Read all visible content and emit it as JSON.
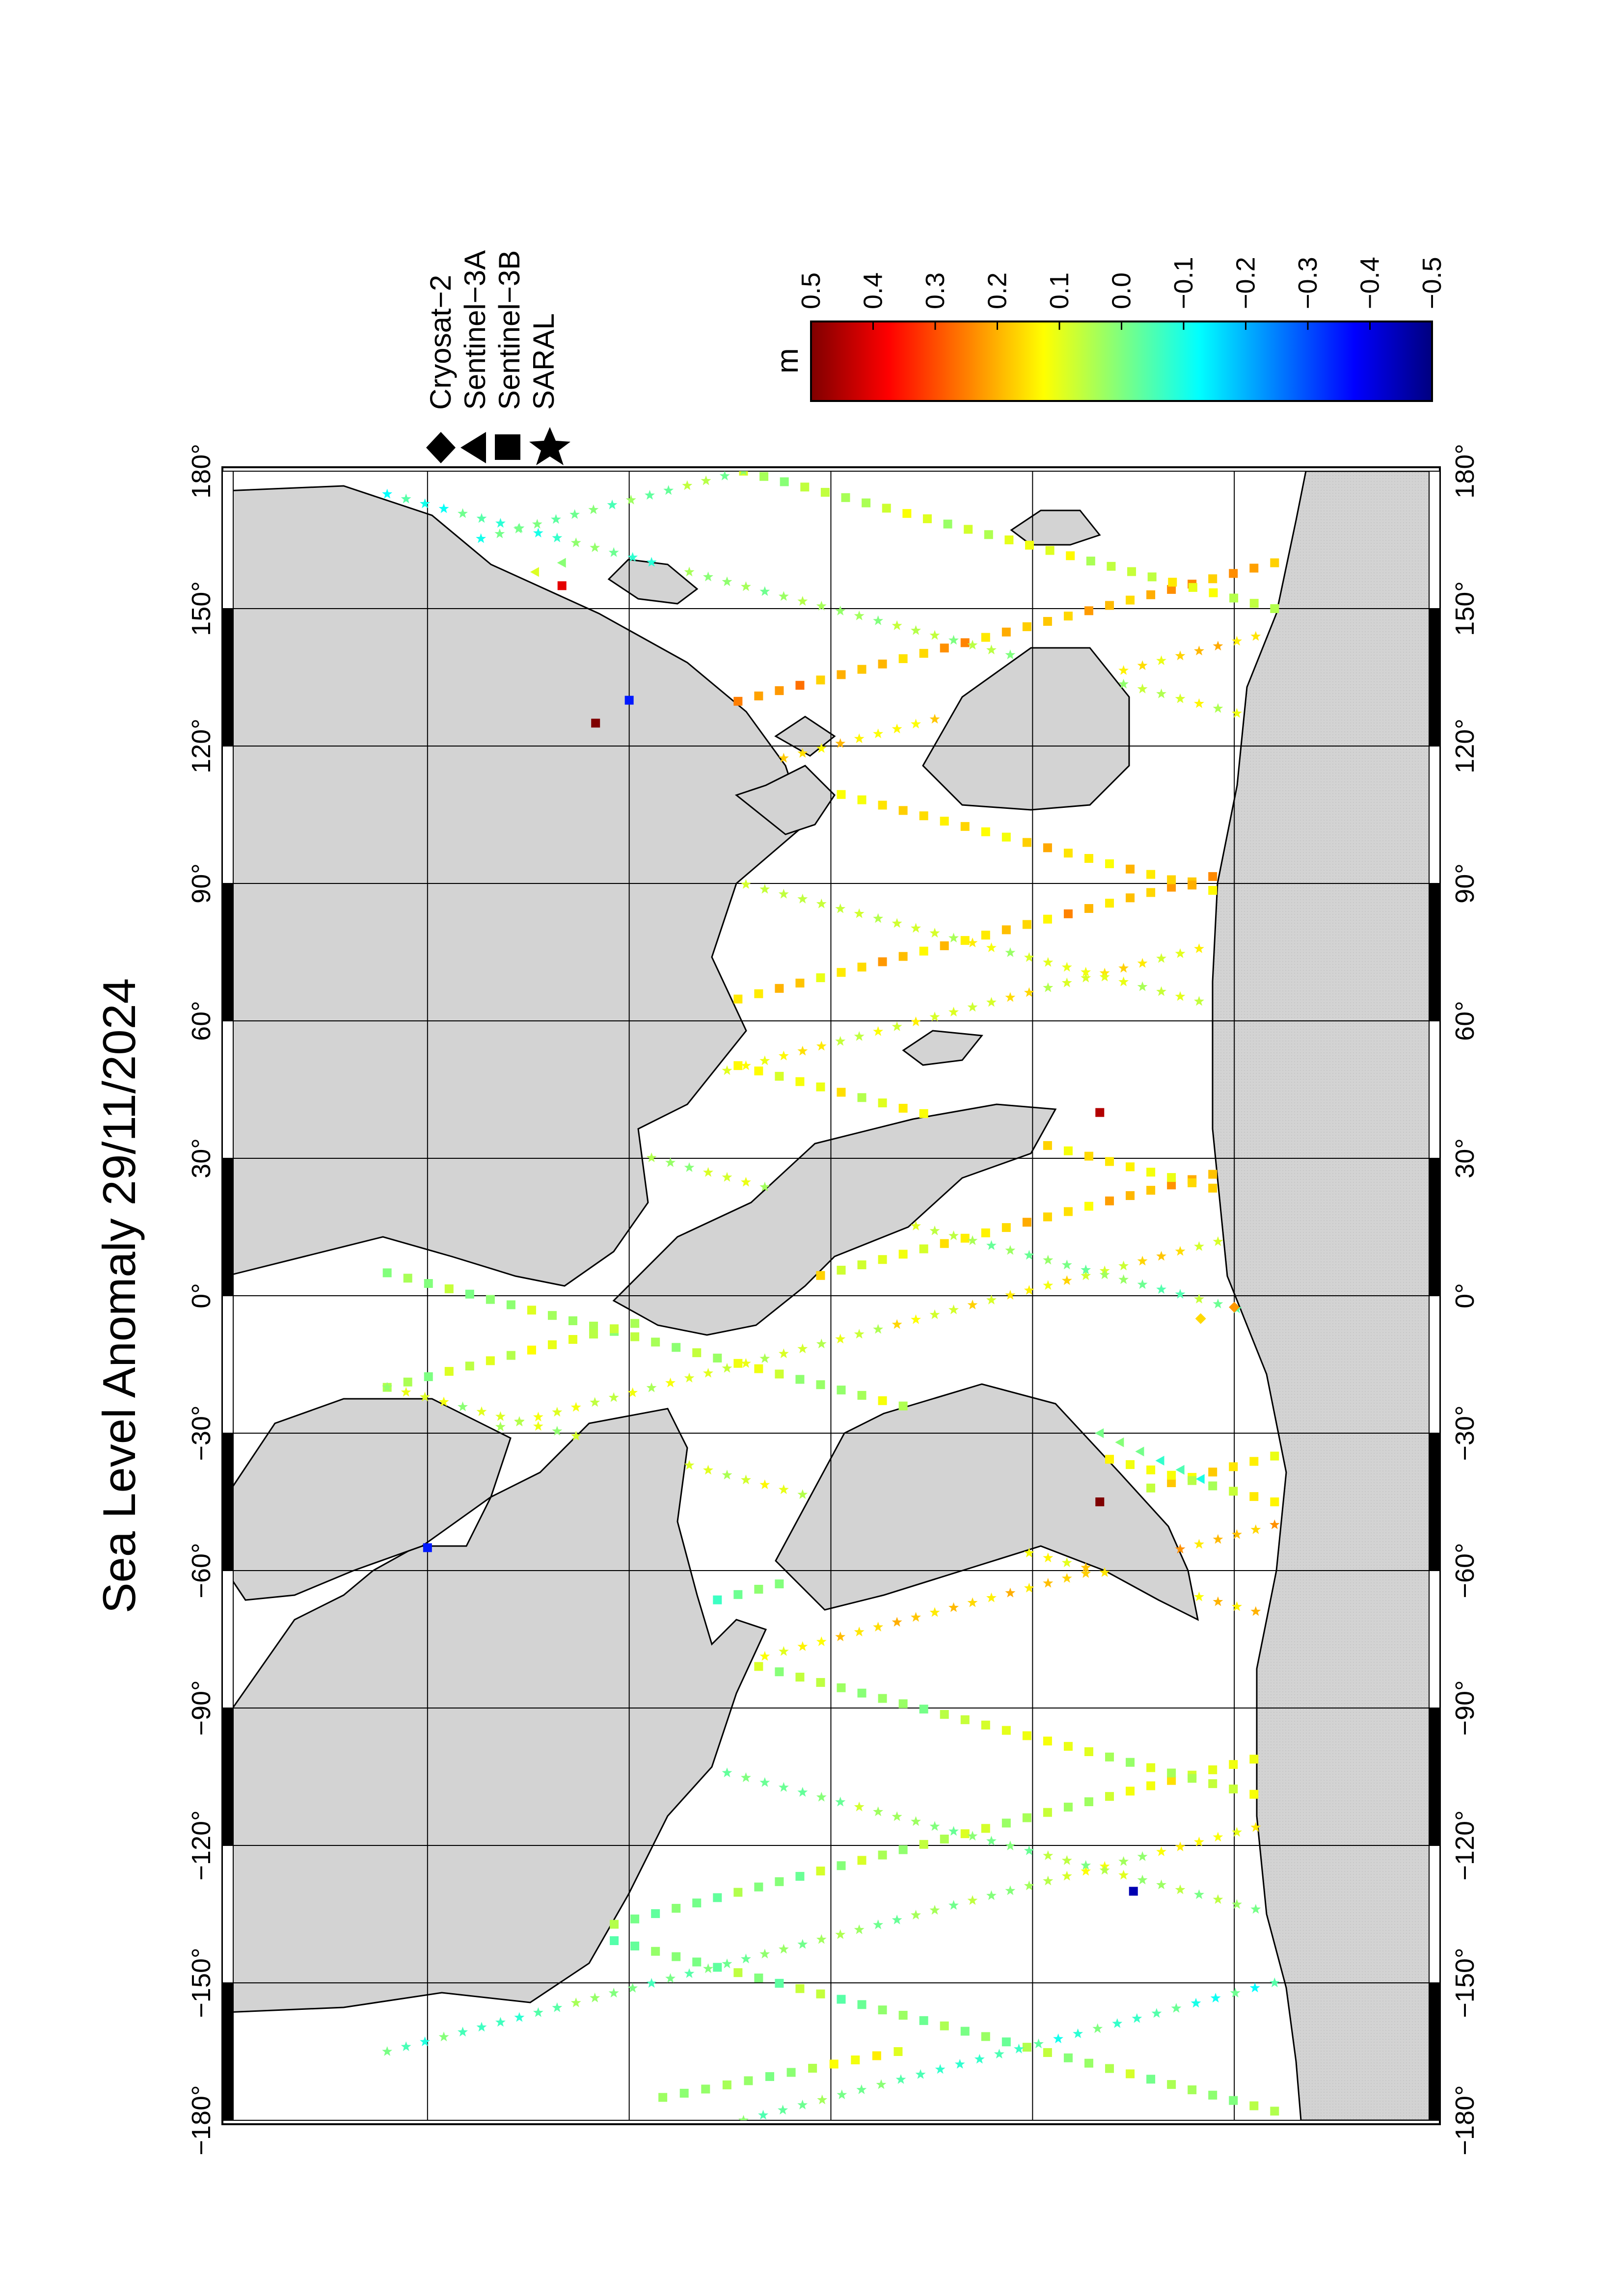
{
  "chart_data": {
    "type": "scatter",
    "title": "Sea Level Anomaly 29/11/2024",
    "projection": "equirectangular",
    "orientation": "rotated 90 degrees counter-clockwise on the page",
    "xlim": [
      -180,
      180
    ],
    "ylim": [
      -90,
      90
    ],
    "lon_ticks": [
      "−180°",
      "−150°",
      "−120°",
      "−90°",
      "−60°",
      "−30°",
      "0°",
      "30°",
      "60°",
      "90°",
      "120°",
      "150°",
      "180°"
    ],
    "lat_gridlines": [
      -60,
      -30,
      0,
      30,
      60
    ],
    "grid": true,
    "land_color": "#d3d3d3",
    "ocean_color": "#ffffff",
    "ice_color": "#d3d3d3",
    "legend": {
      "placement": "top-right",
      "entries": [
        {
          "symbol": "diamond",
          "name": "Cryosat−2"
        },
        {
          "symbol": "triangle",
          "name": "Sentinel−3A"
        },
        {
          "symbol": "square",
          "name": "Sentinel−3B"
        },
        {
          "symbol": "star",
          "name": "SARAL"
        }
      ]
    },
    "colorbar": {
      "unit": "m",
      "range": [
        -0.5,
        0.5
      ],
      "tick_labels": [
        "0.5",
        "0.4",
        "0.3",
        "0.2",
        "0.1",
        "0.0",
        "−0.1",
        "−0.2",
        "−0.3",
        "−0.4",
        "−0.5"
      ],
      "colormap": [
        "#00007f",
        "#0000ff",
        "#007fff",
        "#00ffff",
        "#7fff7f",
        "#ffff00",
        "#ff7f00",
        "#ff0000",
        "#7f0000"
      ]
    },
    "series": [
      {
        "name": "Sentinel−3B",
        "symbol": "square",
        "tracks": [
          {
            "lon0": -178,
            "lat0": -66,
            "lon1": -128,
            "lat1": 66,
            "n": 44,
            "v0": 0.05,
            "v1": -0.02
          },
          {
            "lon0": -150,
            "lat0": 66,
            "lon1": -100,
            "lat1": -66,
            "n": 44,
            "v0": -0.05,
            "v1": 0.12
          },
          {
            "lon0": -110,
            "lat0": -66,
            "lon1": -60,
            "lat1": 66,
            "n": 44,
            "v0": 0.08,
            "v1": 0.0
          },
          {
            "lon0": -85,
            "lat0": 66,
            "lon1": -35,
            "lat1": -66,
            "n": 44,
            "v0": -0.1,
            "v1": 0.15
          },
          {
            "lon0": -45,
            "lat0": -66,
            "lon1": 5,
            "lat1": 66,
            "n": 44,
            "v0": 0.1,
            "v1": 0.05
          },
          {
            "lon0": -20,
            "lat0": 66,
            "lon1": 30,
            "lat1": -66,
            "n": 44,
            "v0": 0.05,
            "v1": 0.2
          },
          {
            "lon0": 20,
            "lat0": -66,
            "lon1": 70,
            "lat1": 66,
            "n": 44,
            "v0": 0.12,
            "v1": 0.08
          },
          {
            "lon0": 45,
            "lat0": 66,
            "lon1": 95,
            "lat1": -66,
            "n": 44,
            "v0": 0.1,
            "v1": 0.22
          },
          {
            "lon0": 85,
            "lat0": -66,
            "lon1": 135,
            "lat1": 66,
            "n": 44,
            "v0": 0.15,
            "v1": 0.2
          },
          {
            "lon0": 110,
            "lat0": 66,
            "lon1": 160,
            "lat1": -66,
            "n": 44,
            "v0": 0.25,
            "v1": 0.18
          },
          {
            "lon0": 150,
            "lat0": -66,
            "lon1": 180,
            "lat1": 13,
            "n": 27,
            "v0": 0.1,
            "v1": 0.05
          },
          {
            "lon0": -175,
            "lat0": 25,
            "lon1": -165,
            "lat1": -10,
            "n": 12,
            "v0": 0.0,
            "v1": 0.1
          }
        ]
      },
      {
        "name": "SARAL",
        "symbol": "star",
        "tracks": [
          {
            "lon0": -165,
            "lat0": 66,
            "lon1": -115,
            "lat1": -66,
            "n": 48,
            "v0": -0.05,
            "v1": 0.1
          },
          {
            "lon0": -135,
            "lat0": -66,
            "lon1": -85,
            "lat1": 66,
            "n": 48,
            "v0": 0.05,
            "v1": 0.0
          },
          {
            "lon0": -100,
            "lat0": 66,
            "lon1": -50,
            "lat1": -66,
            "n": 48,
            "v0": 0.1,
            "v1": 0.2
          },
          {
            "lon0": -70,
            "lat0": -66,
            "lon1": -20,
            "lat1": 66,
            "n": 48,
            "v0": 0.18,
            "v1": 0.05
          },
          {
            "lon0": -35,
            "lat0": 66,
            "lon1": 15,
            "lat1": -66,
            "n": 48,
            "v0": 0.05,
            "v1": 0.15
          },
          {
            "lon0": -5,
            "lat0": -66,
            "lon1": 45,
            "lat1": 66,
            "n": 48,
            "v0": 0.0,
            "v1": 0.1
          },
          {
            "lon0": 30,
            "lat0": 66,
            "lon1": 80,
            "lat1": -66,
            "n": 48,
            "v0": 0.08,
            "v1": 0.12
          },
          {
            "lon0": 60,
            "lat0": -66,
            "lon1": 110,
            "lat1": 66,
            "n": 48,
            "v0": 0.05,
            "v1": 0.15
          },
          {
            "lon0": 95,
            "lat0": 66,
            "lon1": 145,
            "lat1": -66,
            "n": 48,
            "v0": 0.2,
            "v1": 0.15
          },
          {
            "lon0": 125,
            "lat0": -66,
            "lon1": 175,
            "lat1": 66,
            "n": 48,
            "v0": 0.1,
            "v1": -0.08
          },
          {
            "lon0": 160,
            "lat0": 66,
            "lon1": 180,
            "lat1": 13,
            "n": 20,
            "v0": -0.1,
            "v1": 0.05
          },
          {
            "lon0": -180,
            "lat0": 13,
            "lon1": -150,
            "lat1": -66,
            "n": 28,
            "v0": 0.0,
            "v1": -0.08
          }
        ]
      },
      {
        "name": "Sentinel−3A",
        "symbol": "triangle",
        "tracks": [
          {
            "lon0": -40,
            "lat0": -55,
            "lon1": -30,
            "lat1": -40,
            "n": 6,
            "v0": -0.05,
            "v1": 0.0
          },
          {
            "lon0": 150,
            "lat0": 60,
            "lon1": 160,
            "lat1": 40,
            "n": 6,
            "v0": 0.0,
            "v1": 0.05
          }
        ]
      },
      {
        "name": "Cryosat−2",
        "symbol": "diamond",
        "tracks": [
          {
            "lon0": -50,
            "lat0": 40,
            "lon1": -45,
            "lat1": 30,
            "n": 3,
            "v0": 0.3,
            "v1": 0.25
          },
          {
            "lon0": -5,
            "lat0": -55,
            "lon1": 0,
            "lat1": -65,
            "n": 3,
            "v0": 0.2,
            "v1": 0.25
          }
        ]
      }
    ],
    "highlights": [
      {
        "lon": -45,
        "lat": -40,
        "value": 0.5
      },
      {
        "lon": 40,
        "lat": -40,
        "value": 0.45
      },
      {
        "lon": 125,
        "lat": 35,
        "value": 0.5
      },
      {
        "lon": -130,
        "lat": -45,
        "value": -0.45
      },
      {
        "lon": 130,
        "lat": 30,
        "value": -0.35
      },
      {
        "lon": 155,
        "lat": 40,
        "value": 0.4
      },
      {
        "lon": -55,
        "lat": 60,
        "value": -0.35
      }
    ]
  }
}
